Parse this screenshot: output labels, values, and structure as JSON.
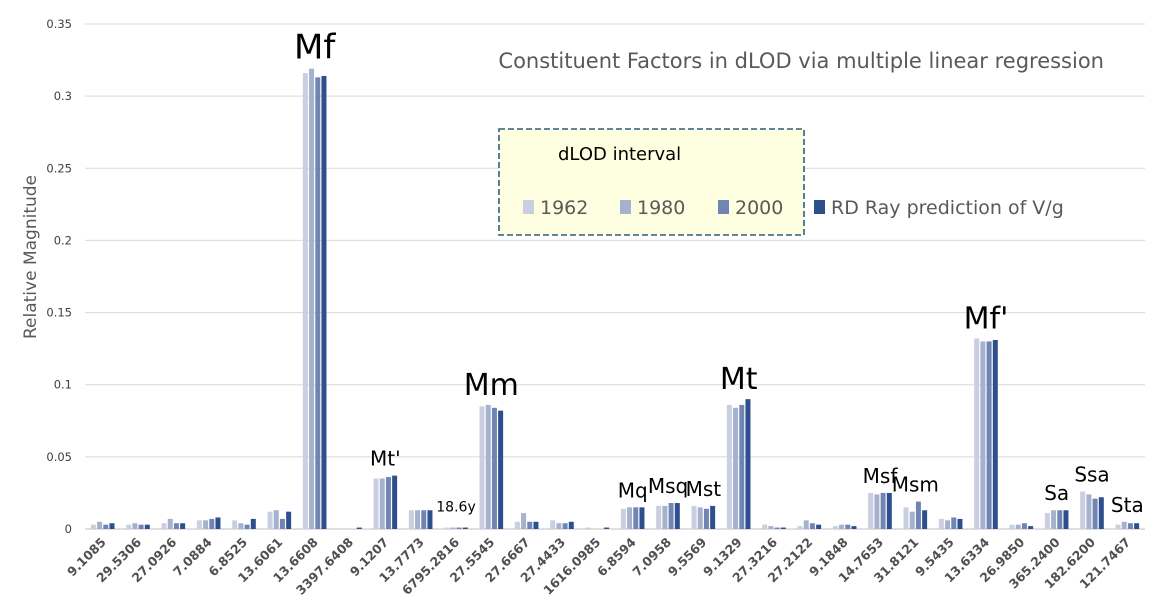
{
  "chart_data": {
    "type": "bar",
    "title": "Constituent Factors in dLOD via multiple linear regression",
    "ylabel": "Relative Magnitude",
    "xlabel": "",
    "ylim": [
      0,
      0.35
    ],
    "yticks": [
      "0",
      "0.05",
      "0.1",
      "0.15",
      "0.2",
      "0.25",
      "0.3",
      "0.35"
    ],
    "grid": true,
    "legend_title": "dLOD interval",
    "legend_placement": "top-center",
    "categories": [
      "9.1085",
      "29.5306",
      "27.0926",
      "7.0884",
      "6.8525",
      "13.6061",
      "13.6608",
      "3397.6408",
      "9.1207",
      "13.7773",
      "6795.2816",
      "27.5545",
      "27.6667",
      "27.4433",
      "1616.0985",
      "6.8594",
      "7.0958",
      "9.5569",
      "9.1329",
      "27.3216",
      "27.2122",
      "9.1848",
      "14.7653",
      "31.8121",
      "9.5435",
      "13.6334",
      "26.9850",
      "365.2400",
      "182.6200",
      "121.7467"
    ],
    "series": [
      {
        "name": "1962",
        "color": "#c9cfe0",
        "values": [
          0.003,
          0.003,
          0.004,
          0.006,
          0.006,
          0.012,
          0.316,
          0.0,
          0.035,
          0.013,
          0.001,
          0.085,
          0.005,
          0.006,
          0.001,
          0.014,
          0.016,
          0.016,
          0.086,
          0.003,
          0.002,
          0.002,
          0.025,
          0.015,
          0.007,
          0.132,
          0.003,
          0.011,
          0.026,
          0.003
        ]
      },
      {
        "name": "1980",
        "color": "#a5b1cd",
        "values": [
          0.005,
          0.004,
          0.007,
          0.006,
          0.004,
          0.013,
          0.319,
          0.0,
          0.035,
          0.013,
          0.001,
          0.086,
          0.011,
          0.004,
          0.0,
          0.015,
          0.016,
          0.015,
          0.084,
          0.002,
          0.006,
          0.003,
          0.024,
          0.012,
          0.006,
          0.13,
          0.003,
          0.013,
          0.024,
          0.005
        ]
      },
      {
        "name": "2000",
        "color": "#7185b4",
        "values": [
          0.003,
          0.003,
          0.004,
          0.007,
          0.003,
          0.007,
          0.313,
          0.0,
          0.036,
          0.013,
          0.001,
          0.084,
          0.005,
          0.004,
          0.0,
          0.015,
          0.018,
          0.014,
          0.086,
          0.001,
          0.004,
          0.003,
          0.025,
          0.019,
          0.008,
          0.13,
          0.004,
          0.013,
          0.021,
          0.004
        ]
      },
      {
        "name": "RD Ray prediction of V/g",
        "color": "#2d4f8e",
        "values": [
          0.004,
          0.003,
          0.004,
          0.008,
          0.007,
          0.012,
          0.314,
          0.001,
          0.037,
          0.013,
          0.001,
          0.082,
          0.005,
          0.005,
          0.001,
          0.015,
          0.018,
          0.016,
          0.09,
          0.001,
          0.003,
          0.002,
          0.025,
          0.013,
          0.007,
          0.131,
          0.002,
          0.013,
          0.022,
          0.004
        ]
      }
    ],
    "annotations": [
      {
        "text": "Mf",
        "category_index": 6,
        "size": "xl"
      },
      {
        "text": "Mt'",
        "category_index": 8,
        "size": "s"
      },
      {
        "text": "18.6y",
        "category_index": 10,
        "size": "xs"
      },
      {
        "text": "Mm",
        "category_index": 11,
        "size": "l"
      },
      {
        "text": "Mq",
        "category_index": 15,
        "size": "s"
      },
      {
        "text": "Msq",
        "category_index": 16,
        "size": "s"
      },
      {
        "text": "Mst",
        "category_index": 17,
        "size": "s"
      },
      {
        "text": "Mt",
        "category_index": 18,
        "size": "l"
      },
      {
        "text": "Msf",
        "category_index": 22,
        "size": "s"
      },
      {
        "text": "Msm",
        "category_index": 23,
        "size": "s"
      },
      {
        "text": "Mf'",
        "category_index": 25,
        "size": "l"
      },
      {
        "text": "Sa",
        "category_index": 27,
        "size": "s"
      },
      {
        "text": "Ssa",
        "category_index": 28,
        "size": "s"
      },
      {
        "text": "Sta",
        "category_index": 29,
        "size": "s"
      }
    ]
  }
}
